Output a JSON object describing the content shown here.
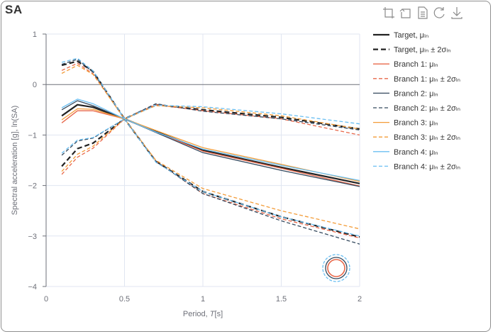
{
  "panel_title": "SA",
  "toolbar": {
    "icons": [
      "zoom-select-icon",
      "zoom-reset-icon",
      "data-view-icon",
      "restore-icon",
      "save-image-icon"
    ]
  },
  "chart_data": {
    "type": "line",
    "title": "SA",
    "xlabel_prefix": "Period, ",
    "xlabel_var": "T",
    "xlabel_suffix": "[s]",
    "ylabel": "Spectral acceleration [g], ln(SA)",
    "xlim": [
      0,
      2
    ],
    "ylim": [
      -4,
      1
    ],
    "x_ticks": [
      0,
      0.5,
      1,
      1.5,
      2
    ],
    "x_tick_labels": [
      "0",
      "0.5",
      "1",
      "1.5",
      "2"
    ],
    "y_ticks": [
      1,
      0,
      -1,
      -2,
      -3,
      -4
    ],
    "y_tick_labels": [
      "1",
      "0",
      "−1",
      "−2",
      "−3",
      "−4"
    ],
    "grid": true,
    "legend_position": "right",
    "series": [
      {
        "name": "Target, μₗₙ",
        "color": "#222222",
        "dash": "solid",
        "width": 2.2,
        "x": [
          0.1,
          0.2,
          0.3,
          0.5,
          0.7,
          1.0,
          1.5,
          2.0
        ],
        "y": [
          -0.62,
          -0.4,
          -0.45,
          -0.68,
          -0.93,
          -1.3,
          -1.64,
          -1.96
        ]
      },
      {
        "name": "Target, μₗₙ ± 2σₗₙ",
        "color": "#222222",
        "dash": "dash",
        "width": 2.2,
        "x": [
          0.1,
          0.2,
          0.3,
          0.5,
          0.7,
          1.0,
          1.5,
          2.0
        ],
        "y": [
          0.38,
          0.46,
          0.26,
          -0.68,
          -0.4,
          -0.5,
          -0.65,
          -0.88
        ]
      },
      {
        "name": "",
        "color": "#222222",
        "dash": "dash",
        "width": 2.2,
        "legend": false,
        "x": [
          0.1,
          0.2,
          0.3,
          0.5,
          0.7,
          1.0,
          1.5,
          2.0
        ],
        "y": [
          -1.62,
          -1.27,
          -1.16,
          -0.68,
          -1.52,
          -2.12,
          -2.62,
          -3.02
        ]
      },
      {
        "name": "Branch 1: μₗₙ",
        "color": "#e8684a",
        "dash": "solid",
        "width": 1.3,
        "x": [
          0.1,
          0.2,
          0.3,
          0.5,
          0.7,
          1.0,
          1.5,
          2.0
        ],
        "y": [
          -0.76,
          -0.52,
          -0.52,
          -0.68,
          -0.94,
          -1.32,
          -1.66,
          -2.01
        ]
      },
      {
        "name": "Branch 1: μₗₙ ± 2σₗₙ",
        "color": "#e8684a",
        "dash": "dash",
        "width": 1.3,
        "x": [
          0.1,
          0.2,
          0.3,
          0.5,
          0.7,
          1.0,
          1.5,
          2.0
        ],
        "y": [
          0.28,
          0.42,
          0.21,
          -0.68,
          -0.4,
          -0.52,
          -0.68,
          -1.0
        ]
      },
      {
        "name": "",
        "color": "#e8684a",
        "dash": "dash",
        "width": 1.3,
        "legend": false,
        "x": [
          0.1,
          0.2,
          0.3,
          0.5,
          0.7,
          1.0,
          1.5,
          2.0
        ],
        "y": [
          -1.78,
          -1.44,
          -1.26,
          -0.68,
          -1.52,
          -2.16,
          -2.66,
          -3.04
        ]
      },
      {
        "name": "Branch 2: μₗₙ",
        "color": "#34495e",
        "dash": "solid",
        "width": 1.3,
        "x": [
          0.1,
          0.2,
          0.3,
          0.5,
          0.7,
          1.0,
          1.5,
          2.0
        ],
        "y": [
          -0.5,
          -0.32,
          -0.42,
          -0.68,
          -0.95,
          -1.35,
          -1.7,
          -2.02
        ]
      },
      {
        "name": "Branch 2: μₗₙ ± 2σₗₙ",
        "color": "#34495e",
        "dash": "dash",
        "width": 1.3,
        "x": [
          0.1,
          0.2,
          0.3,
          0.5,
          0.7,
          1.0,
          1.5,
          2.0
        ],
        "y": [
          0.4,
          0.5,
          0.24,
          -0.68,
          -0.38,
          -0.53,
          -0.68,
          -0.9
        ]
      },
      {
        "name": "",
        "color": "#34495e",
        "dash": "dash",
        "width": 1.3,
        "legend": false,
        "x": [
          0.1,
          0.2,
          0.3,
          0.5,
          0.7,
          1.0,
          1.5,
          2.0
        ],
        "y": [
          -1.4,
          -1.12,
          -1.06,
          -0.68,
          -1.52,
          -2.16,
          -2.7,
          -3.16
        ]
      },
      {
        "name": "Branch 3: μₗₙ",
        "color": "#f39c38",
        "dash": "solid",
        "width": 1.3,
        "x": [
          0.1,
          0.2,
          0.3,
          0.5,
          0.7,
          1.0,
          1.5,
          2.0
        ],
        "y": [
          -0.7,
          -0.48,
          -0.49,
          -0.68,
          -0.91,
          -1.25,
          -1.58,
          -1.92
        ]
      },
      {
        "name": "Branch 3: μₗₙ ± 2σₗₙ",
        "color": "#f39c38",
        "dash": "dash",
        "width": 1.3,
        "x": [
          0.1,
          0.2,
          0.3,
          0.5,
          0.7,
          1.0,
          1.5,
          2.0
        ],
        "y": [
          0.22,
          0.38,
          0.2,
          -0.68,
          -0.42,
          -0.46,
          -0.62,
          -0.88
        ]
      },
      {
        "name": "",
        "color": "#f39c38",
        "dash": "dash",
        "width": 1.3,
        "legend": false,
        "x": [
          0.1,
          0.2,
          0.3,
          0.5,
          0.7,
          1.0,
          1.5,
          2.0
        ],
        "y": [
          -1.72,
          -1.38,
          -1.22,
          -0.68,
          -1.5,
          -2.06,
          -2.5,
          -2.86
        ]
      },
      {
        "name": "Branch 4: μₗₙ",
        "color": "#6bbff2",
        "dash": "solid",
        "width": 1.3,
        "x": [
          0.1,
          0.2,
          0.3,
          0.5,
          0.7,
          1.0,
          1.5,
          2.0
        ],
        "y": [
          -0.46,
          -0.29,
          -0.38,
          -0.68,
          -0.94,
          -1.28,
          -1.6,
          -1.9
        ]
      },
      {
        "name": "Branch 4: μₗₙ ± 2σₗₙ",
        "color": "#6bbff2",
        "dash": "dash",
        "width": 1.3,
        "x": [
          0.1,
          0.2,
          0.3,
          0.5,
          0.7,
          1.0,
          1.5,
          2.0
        ],
        "y": [
          0.44,
          0.52,
          0.27,
          -0.68,
          -0.41,
          -0.44,
          -0.58,
          -0.78
        ]
      },
      {
        "name": "",
        "color": "#6bbff2",
        "dash": "dash",
        "width": 1.3,
        "legend": false,
        "x": [
          0.1,
          0.2,
          0.3,
          0.5,
          0.7,
          1.0,
          1.5,
          2.0
        ],
        "y": [
          -1.36,
          -1.1,
          -1.05,
          -0.68,
          -1.54,
          -2.12,
          -2.62,
          -3.0
        ]
      }
    ]
  }
}
